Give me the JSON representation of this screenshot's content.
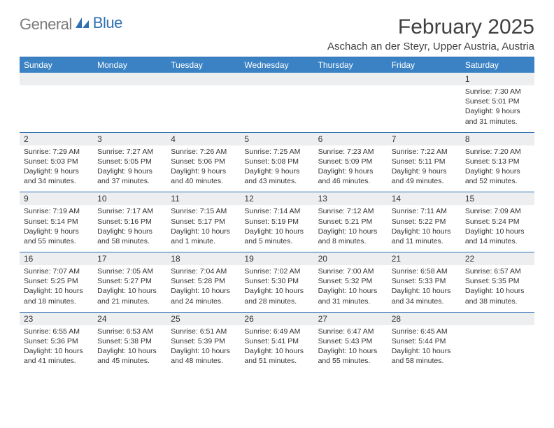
{
  "brand": {
    "part1": "General",
    "part2": "Blue"
  },
  "title": "February 2025",
  "location": "Aschach an der Steyr, Upper Austria, Austria",
  "colors": {
    "header_bg": "#3b82c4",
    "header_text": "#ffffff",
    "rule": "#2f6fb3",
    "daynum_bg": "#eceef0",
    "text": "#333333",
    "logo_gray": "#7a7a7a",
    "logo_blue": "#2f6fb3"
  },
  "daynames": [
    "Sunday",
    "Monday",
    "Tuesday",
    "Wednesday",
    "Thursday",
    "Friday",
    "Saturday"
  ],
  "weeks": [
    [
      {
        "n": "",
        "sr": "",
        "ss": "",
        "dl": ""
      },
      {
        "n": "",
        "sr": "",
        "ss": "",
        "dl": ""
      },
      {
        "n": "",
        "sr": "",
        "ss": "",
        "dl": ""
      },
      {
        "n": "",
        "sr": "",
        "ss": "",
        "dl": ""
      },
      {
        "n": "",
        "sr": "",
        "ss": "",
        "dl": ""
      },
      {
        "n": "",
        "sr": "",
        "ss": "",
        "dl": ""
      },
      {
        "n": "1",
        "sr": "Sunrise: 7:30 AM",
        "ss": "Sunset: 5:01 PM",
        "dl": "Daylight: 9 hours and 31 minutes."
      }
    ],
    [
      {
        "n": "2",
        "sr": "Sunrise: 7:29 AM",
        "ss": "Sunset: 5:03 PM",
        "dl": "Daylight: 9 hours and 34 minutes."
      },
      {
        "n": "3",
        "sr": "Sunrise: 7:27 AM",
        "ss": "Sunset: 5:05 PM",
        "dl": "Daylight: 9 hours and 37 minutes."
      },
      {
        "n": "4",
        "sr": "Sunrise: 7:26 AM",
        "ss": "Sunset: 5:06 PM",
        "dl": "Daylight: 9 hours and 40 minutes."
      },
      {
        "n": "5",
        "sr": "Sunrise: 7:25 AM",
        "ss": "Sunset: 5:08 PM",
        "dl": "Daylight: 9 hours and 43 minutes."
      },
      {
        "n": "6",
        "sr": "Sunrise: 7:23 AM",
        "ss": "Sunset: 5:09 PM",
        "dl": "Daylight: 9 hours and 46 minutes."
      },
      {
        "n": "7",
        "sr": "Sunrise: 7:22 AM",
        "ss": "Sunset: 5:11 PM",
        "dl": "Daylight: 9 hours and 49 minutes."
      },
      {
        "n": "8",
        "sr": "Sunrise: 7:20 AM",
        "ss": "Sunset: 5:13 PM",
        "dl": "Daylight: 9 hours and 52 minutes."
      }
    ],
    [
      {
        "n": "9",
        "sr": "Sunrise: 7:19 AM",
        "ss": "Sunset: 5:14 PM",
        "dl": "Daylight: 9 hours and 55 minutes."
      },
      {
        "n": "10",
        "sr": "Sunrise: 7:17 AM",
        "ss": "Sunset: 5:16 PM",
        "dl": "Daylight: 9 hours and 58 minutes."
      },
      {
        "n": "11",
        "sr": "Sunrise: 7:15 AM",
        "ss": "Sunset: 5:17 PM",
        "dl": "Daylight: 10 hours and 1 minute."
      },
      {
        "n": "12",
        "sr": "Sunrise: 7:14 AM",
        "ss": "Sunset: 5:19 PM",
        "dl": "Daylight: 10 hours and 5 minutes."
      },
      {
        "n": "13",
        "sr": "Sunrise: 7:12 AM",
        "ss": "Sunset: 5:21 PM",
        "dl": "Daylight: 10 hours and 8 minutes."
      },
      {
        "n": "14",
        "sr": "Sunrise: 7:11 AM",
        "ss": "Sunset: 5:22 PM",
        "dl": "Daylight: 10 hours and 11 minutes."
      },
      {
        "n": "15",
        "sr": "Sunrise: 7:09 AM",
        "ss": "Sunset: 5:24 PM",
        "dl": "Daylight: 10 hours and 14 minutes."
      }
    ],
    [
      {
        "n": "16",
        "sr": "Sunrise: 7:07 AM",
        "ss": "Sunset: 5:25 PM",
        "dl": "Daylight: 10 hours and 18 minutes."
      },
      {
        "n": "17",
        "sr": "Sunrise: 7:05 AM",
        "ss": "Sunset: 5:27 PM",
        "dl": "Daylight: 10 hours and 21 minutes."
      },
      {
        "n": "18",
        "sr": "Sunrise: 7:04 AM",
        "ss": "Sunset: 5:28 PM",
        "dl": "Daylight: 10 hours and 24 minutes."
      },
      {
        "n": "19",
        "sr": "Sunrise: 7:02 AM",
        "ss": "Sunset: 5:30 PM",
        "dl": "Daylight: 10 hours and 28 minutes."
      },
      {
        "n": "20",
        "sr": "Sunrise: 7:00 AM",
        "ss": "Sunset: 5:32 PM",
        "dl": "Daylight: 10 hours and 31 minutes."
      },
      {
        "n": "21",
        "sr": "Sunrise: 6:58 AM",
        "ss": "Sunset: 5:33 PM",
        "dl": "Daylight: 10 hours and 34 minutes."
      },
      {
        "n": "22",
        "sr": "Sunrise: 6:57 AM",
        "ss": "Sunset: 5:35 PM",
        "dl": "Daylight: 10 hours and 38 minutes."
      }
    ],
    [
      {
        "n": "23",
        "sr": "Sunrise: 6:55 AM",
        "ss": "Sunset: 5:36 PM",
        "dl": "Daylight: 10 hours and 41 minutes."
      },
      {
        "n": "24",
        "sr": "Sunrise: 6:53 AM",
        "ss": "Sunset: 5:38 PM",
        "dl": "Daylight: 10 hours and 45 minutes."
      },
      {
        "n": "25",
        "sr": "Sunrise: 6:51 AM",
        "ss": "Sunset: 5:39 PM",
        "dl": "Daylight: 10 hours and 48 minutes."
      },
      {
        "n": "26",
        "sr": "Sunrise: 6:49 AM",
        "ss": "Sunset: 5:41 PM",
        "dl": "Daylight: 10 hours and 51 minutes."
      },
      {
        "n": "27",
        "sr": "Sunrise: 6:47 AM",
        "ss": "Sunset: 5:43 PM",
        "dl": "Daylight: 10 hours and 55 minutes."
      },
      {
        "n": "28",
        "sr": "Sunrise: 6:45 AM",
        "ss": "Sunset: 5:44 PM",
        "dl": "Daylight: 10 hours and 58 minutes."
      },
      {
        "n": "",
        "sr": "",
        "ss": "",
        "dl": ""
      }
    ]
  ]
}
